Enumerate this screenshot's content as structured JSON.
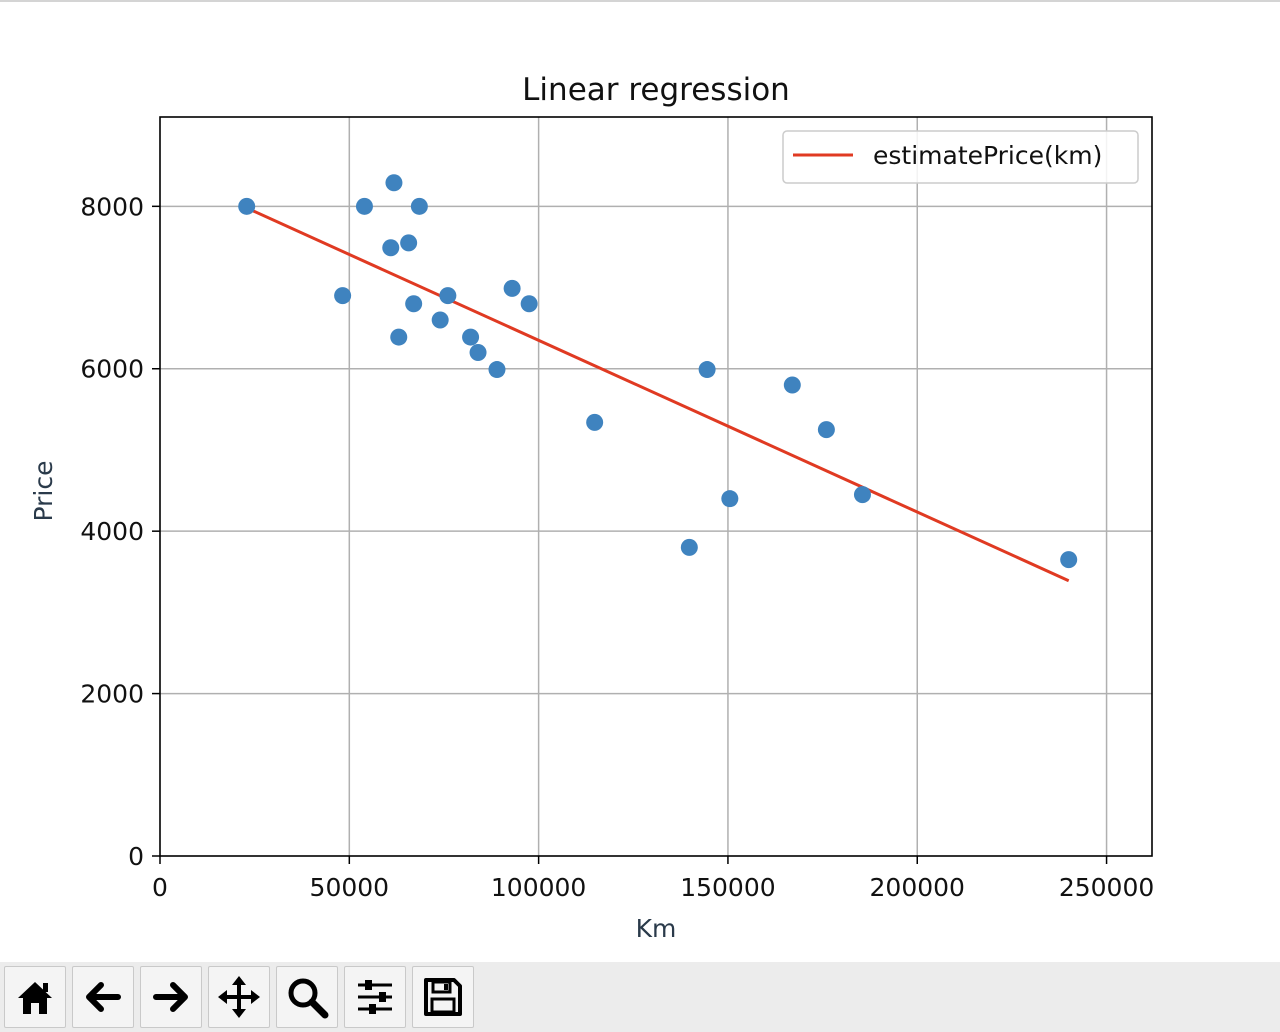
{
  "chart_data": {
    "type": "scatter",
    "title": "Linear regression",
    "xlabel": "Km",
    "ylabel": "Price",
    "xlim": [
      0,
      262000
    ],
    "ylim": [
      0,
      9100
    ],
    "xticks": [
      0,
      50000,
      100000,
      150000,
      200000,
      250000
    ],
    "xtick_labels": [
      "0",
      "50000",
      "100000",
      "150000",
      "200000",
      "250000"
    ],
    "yticks": [
      0,
      2000,
      4000,
      6000,
      8000
    ],
    "ytick_labels": [
      "0",
      "2000",
      "4000",
      "6000",
      "8000"
    ],
    "grid": true,
    "legend": {
      "placement": "upper right",
      "entries": [
        "estimatePrice(km)"
      ]
    },
    "points": [
      {
        "x": 22899,
        "y": 8000
      },
      {
        "x": 48235,
        "y": 6900
      },
      {
        "x": 54000,
        "y": 8000
      },
      {
        "x": 60949,
        "y": 7490
      },
      {
        "x": 61789,
        "y": 8290
      },
      {
        "x": 63060,
        "y": 6390
      },
      {
        "x": 65674,
        "y": 7550
      },
      {
        "x": 67000,
        "y": 6800
      },
      {
        "x": 68500,
        "y": 8000
      },
      {
        "x": 74000,
        "y": 6600
      },
      {
        "x": 76025,
        "y": 6900
      },
      {
        "x": 82029,
        "y": 6390
      },
      {
        "x": 84000,
        "y": 6200
      },
      {
        "x": 89000,
        "y": 5990
      },
      {
        "x": 93000,
        "y": 6990
      },
      {
        "x": 97500,
        "y": 6800
      },
      {
        "x": 114800,
        "y": 5340
      },
      {
        "x": 139800,
        "y": 3800
      },
      {
        "x": 144500,
        "y": 5990
      },
      {
        "x": 150500,
        "y": 4400
      },
      {
        "x": 167000,
        "y": 5800
      },
      {
        "x": 176000,
        "y": 5250
      },
      {
        "x": 185530,
        "y": 4450
      },
      {
        "x": 240000,
        "y": 3650
      }
    ],
    "series": [
      {
        "name": "estimatePrice(km)",
        "type": "line",
        "x": [
          22899,
          240000
        ],
        "y": [
          7980,
          3390
        ]
      }
    ],
    "colors": {
      "points": "#3f83bf",
      "line": "#e03a22",
      "grid": "#b0b0b0"
    }
  },
  "toolbar": {
    "buttons": [
      {
        "icon": "home-icon"
      },
      {
        "icon": "back-arrow-icon"
      },
      {
        "icon": "forward-arrow-icon"
      },
      {
        "icon": "pan-icon"
      },
      {
        "icon": "zoom-icon"
      },
      {
        "icon": "configure-subplots-icon"
      },
      {
        "icon": "save-icon"
      }
    ]
  }
}
